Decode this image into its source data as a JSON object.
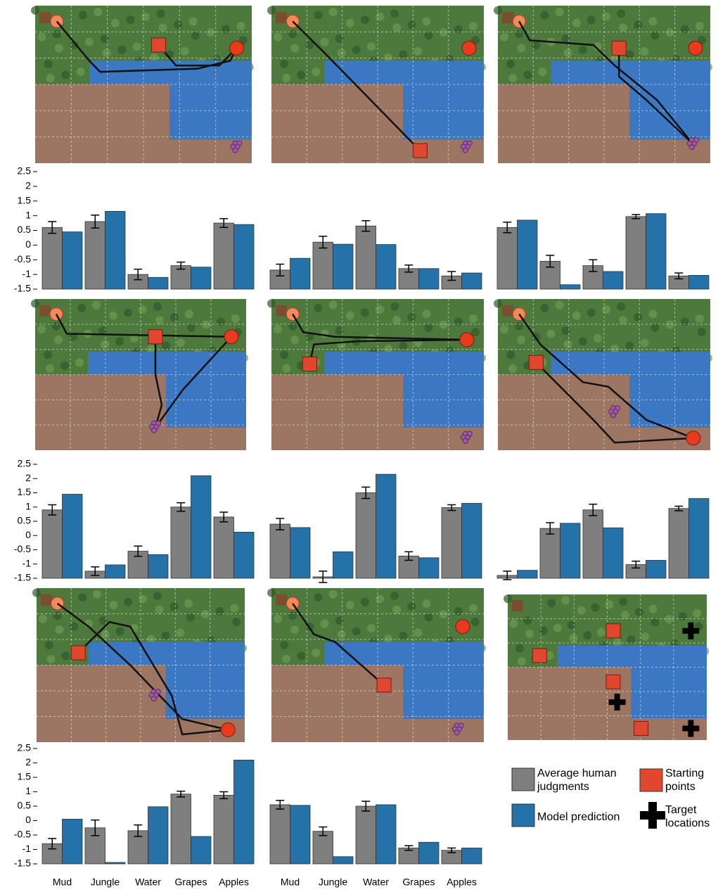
{
  "chart_data": [
    {
      "type": "bar",
      "ylim": [
        -1.5,
        2.5
      ],
      "yticks": [
        2.5,
        2,
        1.5,
        1,
        0.5,
        0,
        -0.5,
        -1,
        -1.5
      ],
      "series": [
        {
          "color": "#7f7f7f",
          "values": [
            0.6,
            0.8,
            -1.0,
            -0.7,
            0.75
          ],
          "errors": [
            0.2,
            0.22,
            0.18,
            0.12,
            0.15
          ]
        },
        {
          "color": "#2472a8",
          "values": [
            0.45,
            1.15,
            -1.1,
            -0.75,
            0.7
          ]
        }
      ]
    },
    {
      "type": "bar",
      "ylim": [
        -1.5,
        2.5
      ],
      "series": [
        {
          "color": "#7f7f7f",
          "values": [
            -0.85,
            0.1,
            0.65,
            -0.8,
            -1.05
          ],
          "errors": [
            0.2,
            0.2,
            0.18,
            0.12,
            0.15
          ]
        },
        {
          "color": "#2472a8",
          "values": [
            -0.45,
            0.03,
            0.02,
            -0.8,
            -0.95
          ]
        }
      ]
    },
    {
      "type": "bar",
      "ylim": [
        -1.5,
        2.5
      ],
      "series": [
        {
          "color": "#7f7f7f",
          "values": [
            0.6,
            -0.55,
            -0.7,
            0.97,
            -1.05
          ],
          "errors": [
            0.18,
            0.2,
            0.2,
            0.07,
            0.1
          ]
        },
        {
          "color": "#2472a8",
          "values": [
            0.85,
            -1.35,
            -0.9,
            1.07,
            -1.03
          ]
        }
      ]
    },
    {
      "type": "bar",
      "ylim": [
        -1.5,
        2.5
      ],
      "yticks": [
        2.5,
        2,
        1.5,
        1,
        0.5,
        0,
        -0.5,
        -1,
        -1.5
      ],
      "series": [
        {
          "color": "#7f7f7f",
          "values": [
            0.9,
            -1.25,
            -0.55,
            1.0,
            0.65
          ],
          "errors": [
            0.18,
            0.15,
            0.18,
            0.15,
            0.17
          ]
        },
        {
          "color": "#2472a8",
          "values": [
            1.45,
            -1.03,
            -0.67,
            2.1,
            0.12
          ]
        }
      ]
    },
    {
      "type": "bar",
      "ylim": [
        -1.5,
        2.5
      ],
      "series": [
        {
          "color": "#7f7f7f",
          "values": [
            0.4,
            -1.45,
            1.5,
            -0.72,
            0.98
          ],
          "errors": [
            0.2,
            0.2,
            0.2,
            0.15,
            0.1
          ]
        },
        {
          "color": "#2472a8",
          "values": [
            0.28,
            -0.57,
            2.15,
            -0.78,
            1.13
          ]
        }
      ]
    },
    {
      "type": "bar",
      "ylim": [
        -1.5,
        2.5
      ],
      "series": [
        {
          "color": "#7f7f7f",
          "values": [
            -1.4,
            0.25,
            0.9,
            -1.02,
            0.95
          ],
          "errors": [
            0.15,
            0.2,
            0.2,
            0.12,
            0.08
          ]
        },
        {
          "color": "#2472a8",
          "values": [
            -1.22,
            0.43,
            0.27,
            -0.87,
            1.3
          ]
        }
      ]
    },
    {
      "type": "bar",
      "ylim": [
        -1.5,
        2.5
      ],
      "yticks": [
        2.5,
        2,
        1.5,
        1,
        0.5,
        0,
        -0.5,
        -1,
        -1.5
      ],
      "categories": [
        "Mud",
        "Jungle",
        "Water",
        "Grapes",
        "Apples"
      ],
      "series": [
        {
          "color": "#7f7f7f",
          "values": [
            -0.8,
            -0.25,
            -0.35,
            0.92,
            0.88
          ],
          "errors": [
            0.18,
            0.27,
            0.2,
            0.1,
            0.12
          ]
        },
        {
          "color": "#2472a8",
          "values": [
            0.05,
            -1.45,
            0.48,
            -0.55,
            2.1
          ]
        }
      ]
    },
    {
      "type": "bar",
      "ylim": [
        -1.5,
        2.5
      ],
      "categories": [
        "Mud",
        "Jungle",
        "Water",
        "Grapes",
        "Apples"
      ],
      "series": [
        {
          "color": "#7f7f7f",
          "values": [
            0.55,
            -0.37,
            0.5,
            -0.95,
            -1.03
          ],
          "errors": [
            0.15,
            0.15,
            0.17,
            0.08,
            0.08
          ]
        },
        {
          "color": "#2472a8",
          "values": [
            0.53,
            -1.25,
            0.55,
            -0.75,
            -0.95
          ]
        }
      ]
    }
  ],
  "legend": {
    "items": [
      {
        "label": "Average human judgments",
        "color": "#7f7f7f"
      },
      {
        "label": "Model prediction",
        "color": "#2472a8"
      },
      {
        "label": "Starting points",
        "color": "#e0472f"
      },
      {
        "label": "Target locations",
        "color": "#000000"
      }
    ]
  }
}
